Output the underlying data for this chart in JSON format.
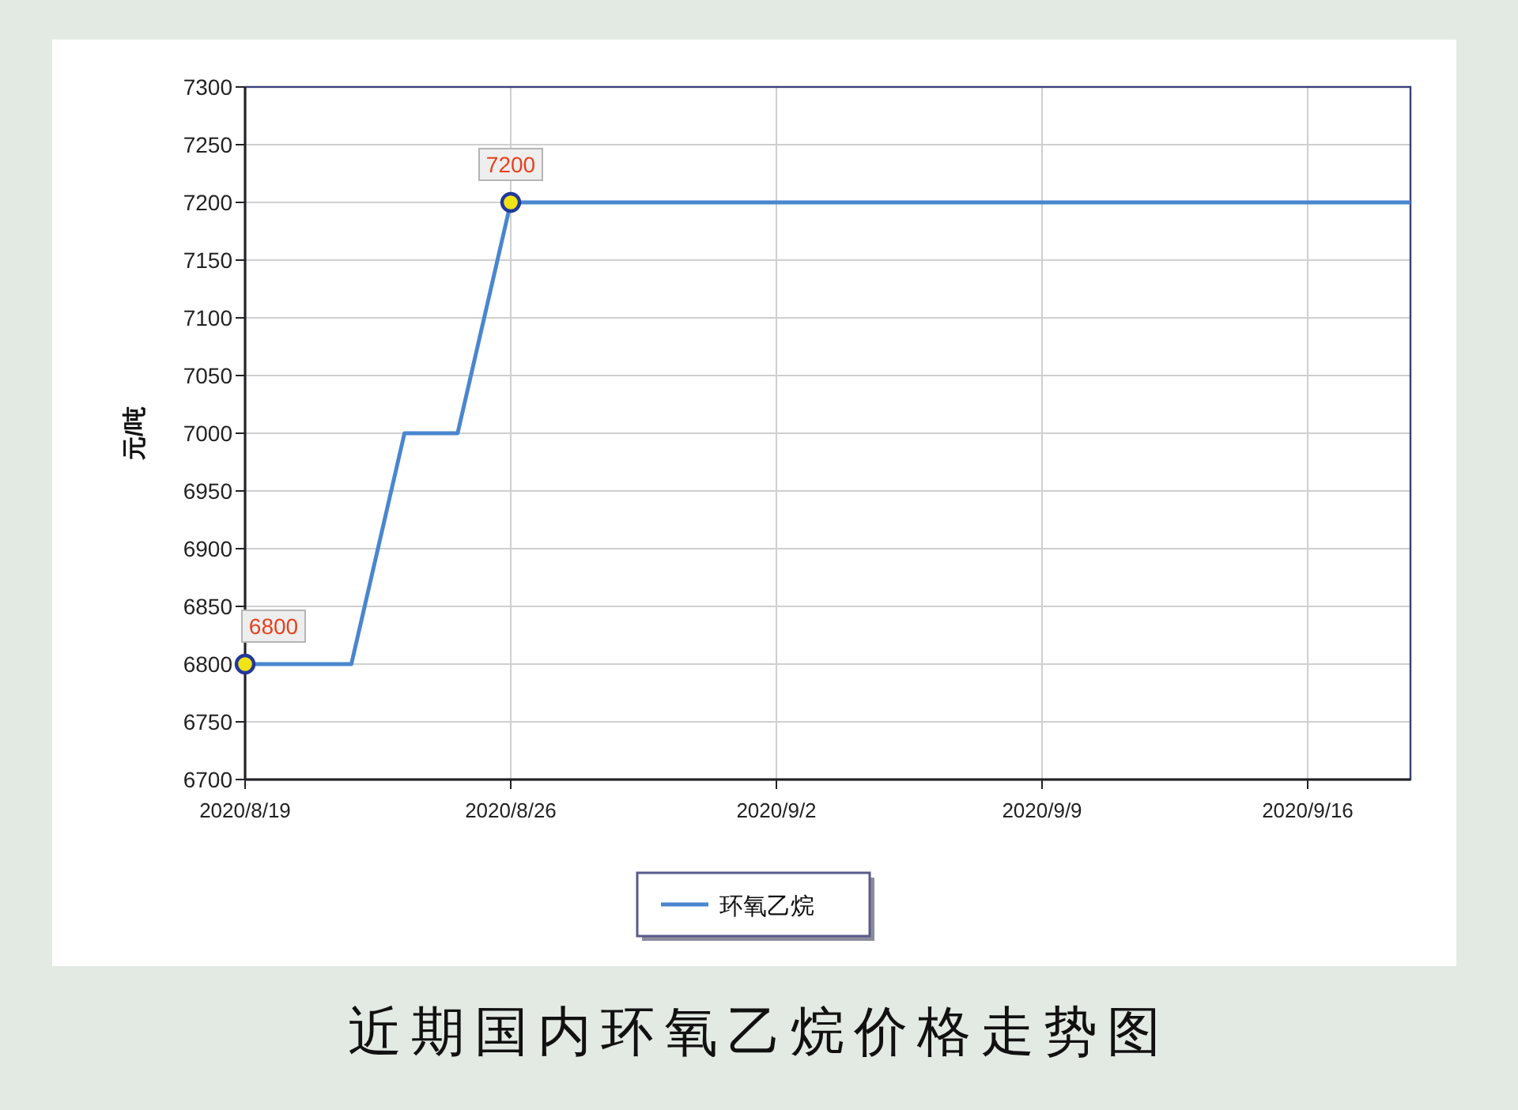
{
  "chart_data": {
    "type": "line",
    "title": "近期国内环氧乙烷价格走势图",
    "ylabel": "元/吨",
    "x": [
      "2020-08-19",
      "2020-08-21T19:12",
      "2020-08-23T04:48",
      "2020-08-24T14:24",
      "2020-08-26",
      "2020-09-18T17:00"
    ],
    "series": [
      {
        "name": "环氧乙烷",
        "color": "#4a86cf",
        "values": [
          6800,
          6800,
          7000,
          7000,
          7200,
          7200
        ],
        "value_labels": [
          "6800",
          null,
          null,
          null,
          "7200",
          null
        ]
      }
    ],
    "xlim": [
      "2020-08-19",
      "2020-09-18T17:00"
    ],
    "xticks": [
      {
        "value": "2020-08-19",
        "label": "2020/8/19"
      },
      {
        "value": "2020-08-26",
        "label": "2020/8/26"
      },
      {
        "value": "2020-09-02",
        "label": "2020/9/2"
      },
      {
        "value": "2020-09-09",
        "label": "2020/9/9"
      },
      {
        "value": "2020-09-16",
        "label": "2020/9/16"
      }
    ],
    "ylim": [
      6700,
      7300
    ],
    "yticks": [
      6700,
      6750,
      6800,
      6850,
      6900,
      6950,
      7000,
      7050,
      7100,
      7150,
      7200,
      7250,
      7300
    ],
    "grid": true,
    "legend": "bottom",
    "line_style": "solid"
  }
}
